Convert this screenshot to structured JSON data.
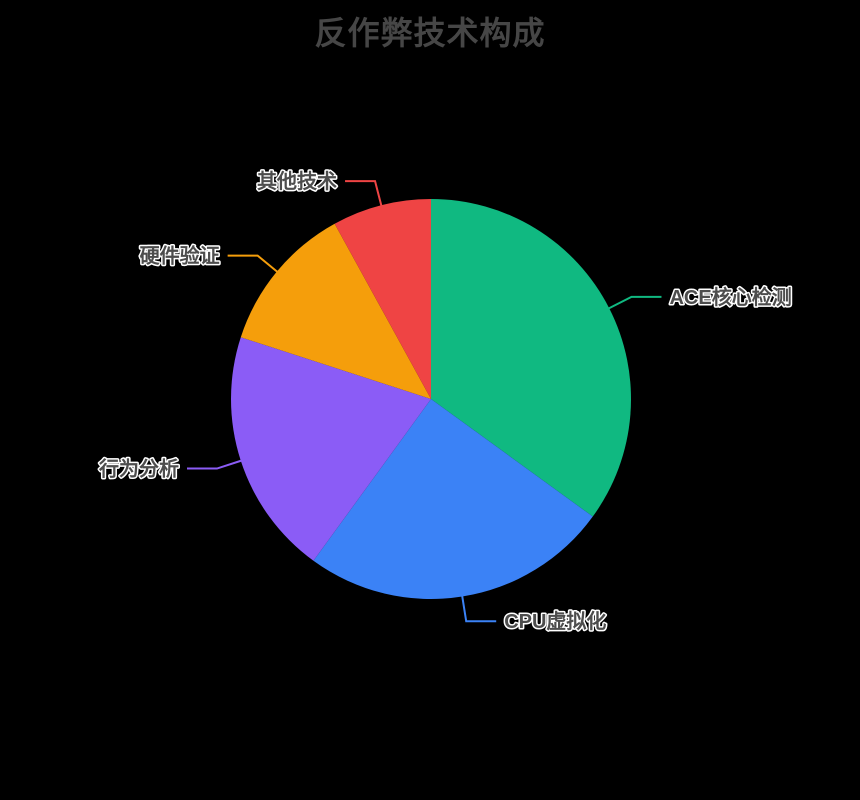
{
  "chart_data": {
    "type": "pie",
    "title": "反作弊技术构成",
    "legend": "none",
    "label_position": "outside",
    "unit": "%",
    "background": "#000000",
    "title_color": "#464646",
    "label_text_color": "#4d4d4d",
    "label_outline_color": "#ffffff",
    "center": [
      431,
      399
    ],
    "radius": 200,
    "start_angle_deg": 0,
    "direction": "clockwise",
    "series": [
      {
        "name": "ACE核心检测",
        "value": 35,
        "color": "#10B981"
      },
      {
        "name": "CPU虚拟化",
        "value": 25,
        "color": "#3B82F6"
      },
      {
        "name": "行为分析",
        "value": 20,
        "color": "#8B5CF6"
      },
      {
        "name": "硬件验证",
        "value": 12,
        "color": "#F59E0B"
      },
      {
        "name": "其他技术",
        "value": 8,
        "color": "#EF4444"
      }
    ]
  }
}
